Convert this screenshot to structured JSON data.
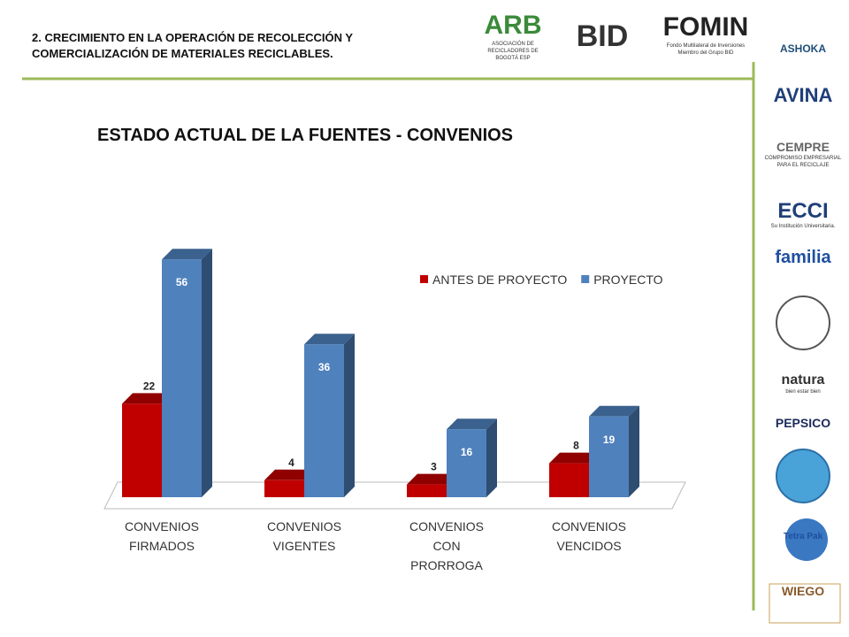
{
  "header": {
    "title": "2. CRECIMIENTO EN  LA OPERACIÓN DE  RECOLECCIÓN Y COMERCIALIZACIÓN DE MATERIALES RECICLABLES."
  },
  "top_logos": [
    {
      "name": "ARB",
      "caption": "ASOCIACIÓN DE RECICLADORES DE BOGOTÁ ESP"
    },
    {
      "name": "BID",
      "caption": null
    },
    {
      "name": "FOMIN",
      "caption": "Fondo Multilateral de Inversiones Miembro del Grupo BID"
    }
  ],
  "side_logos": [
    {
      "name": "ASHOKA",
      "caption": null
    },
    {
      "name": "AVINA",
      "caption": null
    },
    {
      "name": "CEMPRE",
      "caption": "COMPROMISO EMPRESARIAL PARA EL RECICLAJE"
    },
    {
      "name": "ECCI",
      "caption": "Su Institución Universitaria."
    },
    {
      "name": "familia",
      "caption": null
    },
    {
      "name": "natura",
      "caption": "bien estar bien"
    },
    {
      "name": "PEPSICO",
      "caption": null
    },
    {
      "name": "Tetra Pak",
      "caption": null
    },
    {
      "name": "WIEGO",
      "caption": null
    }
  ],
  "chart_data": {
    "type": "bar",
    "title": "ESTADO ACTUAL DE LA FUENTES - CONVENIOS",
    "categories": [
      "CONVENIOS FIRMADOS",
      "CONVENIOS VIGENTES",
      "CONVENIOS CON PRORROGA",
      "CONVENIOS VENCIDOS"
    ],
    "series": [
      {
        "name": "ANTES DE PROYECTO",
        "color": "#c00000",
        "values": [
          22,
          4,
          3,
          8
        ]
      },
      {
        "name": "PROYECTO",
        "color": "#4f81bd",
        "values": [
          56,
          36,
          16,
          19
        ]
      }
    ],
    "legend": "top-right"
  }
}
